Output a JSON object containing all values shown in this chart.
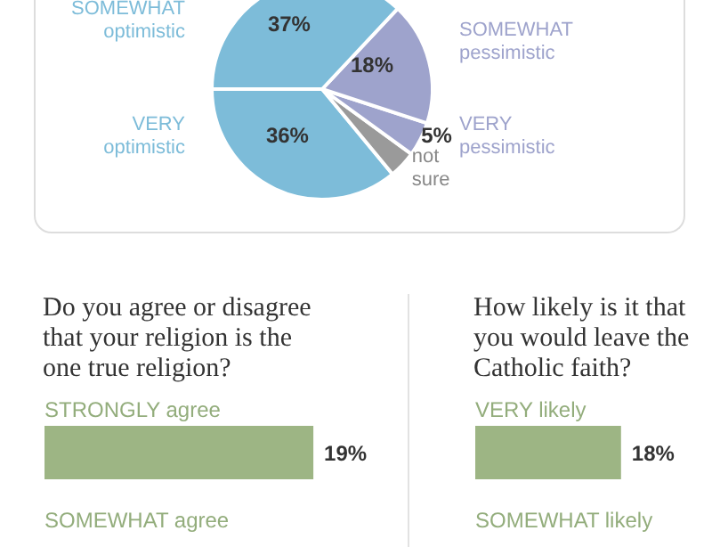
{
  "chart_data": [
    {
      "type": "pie",
      "categories": [
        "VERY optimistic",
        "not sure",
        "VERY pessimistic",
        "SOMEWHAT pessimistic",
        "SOMEWHAT optimistic"
      ],
      "values": [
        36,
        4,
        5,
        18,
        37
      ],
      "colors": [
        "#7dbcd9",
        "#9a9a9a",
        "#9ea3cc",
        "#9ea3cc",
        "#7dbcd9"
      ],
      "value_labels": [
        "36%",
        null,
        "5%",
        "18%",
        "37%"
      ]
    },
    {
      "type": "bar",
      "orientation": "horizontal",
      "title": "Do  you agree or disagree that your religion is the one true religion?",
      "categories": [
        "STRONGLY agree",
        "SOMEWHAT agree"
      ],
      "values": [
        19,
        null
      ],
      "value_labels": [
        "19%",
        null
      ],
      "color": "#9db584"
    },
    {
      "type": "bar",
      "orientation": "horizontal",
      "title": "How likely is it that you would leave the Catholic faith?",
      "categories": [
        "VERY likely",
        "SOMEWHAT likely"
      ],
      "values": [
        18,
        null
      ],
      "value_labels": [
        "18%",
        null
      ],
      "color": "#9db584"
    }
  ]
}
